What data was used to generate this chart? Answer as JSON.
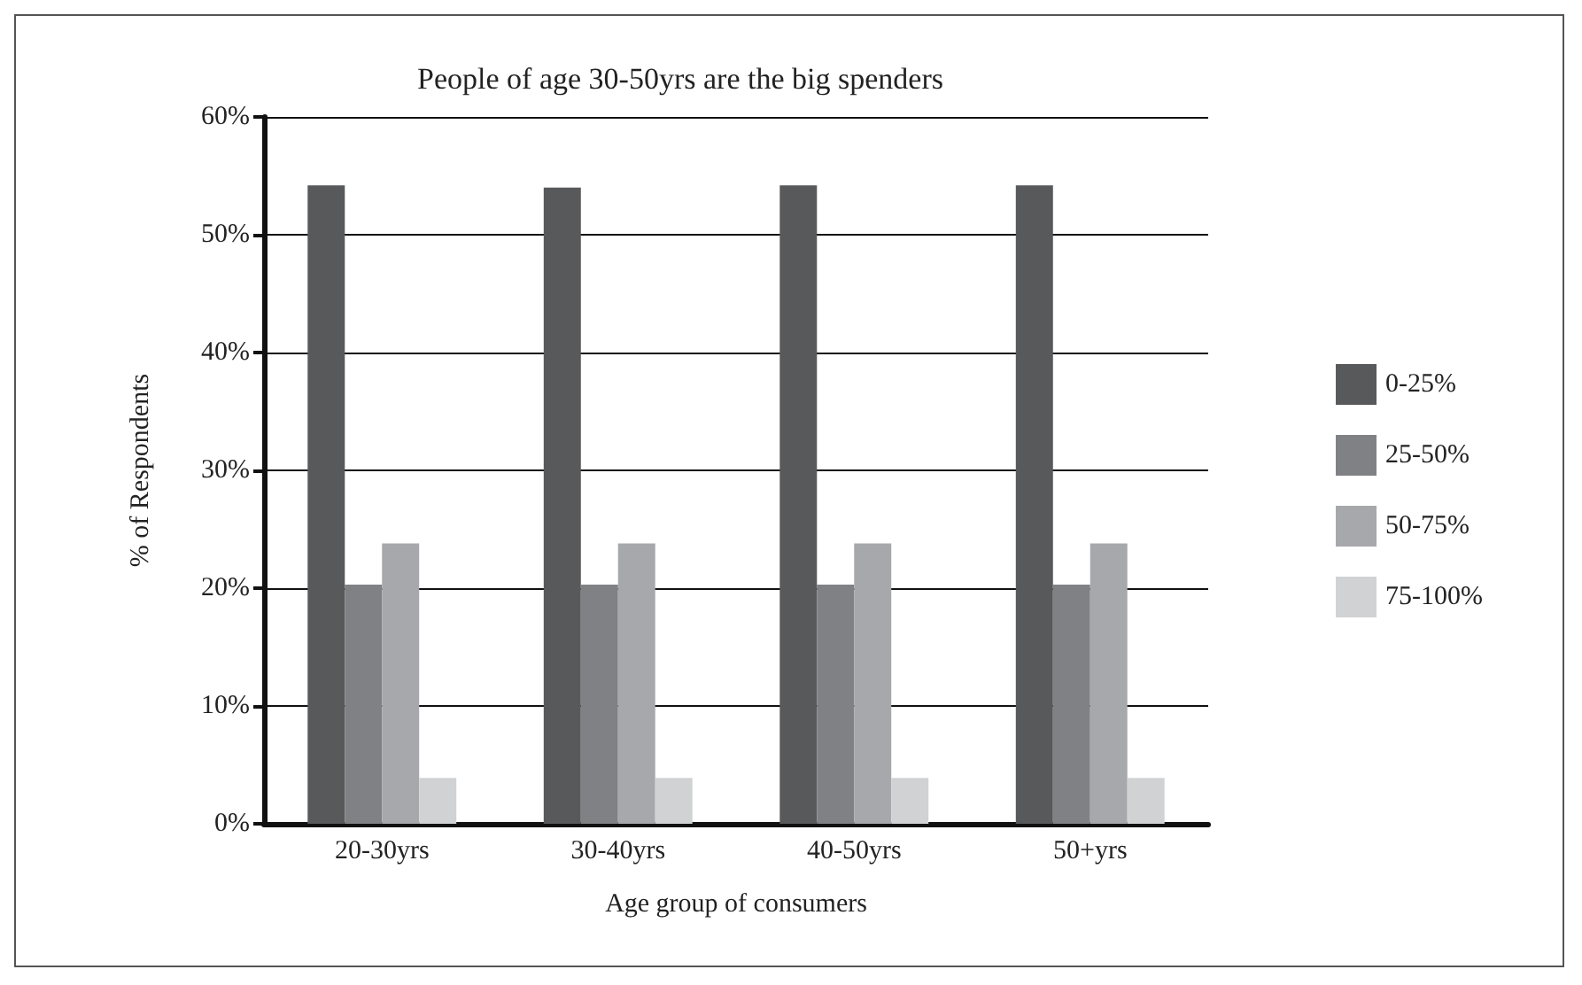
{
  "chart_data": {
    "type": "bar",
    "title": "People of age 30-50yrs are the big spenders",
    "xlabel": "Age group of consumers",
    "ylabel": "% of Respondents",
    "categories": [
      "20-30yrs",
      "30-40yrs",
      "40-50yrs",
      "50+yrs"
    ],
    "series": [
      {
        "name": "0-25%",
        "color": "#58595b",
        "values": [
          54.2,
          54.0,
          54.2,
          54.2
        ]
      },
      {
        "name": "25-50%",
        "color": "#808184",
        "values": [
          20.3,
          20.3,
          20.3,
          20.3
        ]
      },
      {
        "name": "50-75%",
        "color": "#a7a8ab",
        "values": [
          23.8,
          23.8,
          23.8,
          23.8
        ]
      },
      {
        "name": "75-100%",
        "color": "#d1d2d4",
        "values": [
          3.9,
          3.9,
          3.9,
          3.9
        ]
      }
    ],
    "ylim": [
      0,
      60
    ],
    "yticks": [
      {
        "value": 0,
        "label": "0%"
      },
      {
        "value": 10,
        "label": "10%"
      },
      {
        "value": 20,
        "label": "20%"
      },
      {
        "value": 30,
        "label": "30%"
      },
      {
        "value": 40,
        "label": "40%"
      },
      {
        "value": 50,
        "label": "50%"
      },
      {
        "value": 60,
        "label": "60%"
      }
    ],
    "grid": "y",
    "legend": "right"
  }
}
